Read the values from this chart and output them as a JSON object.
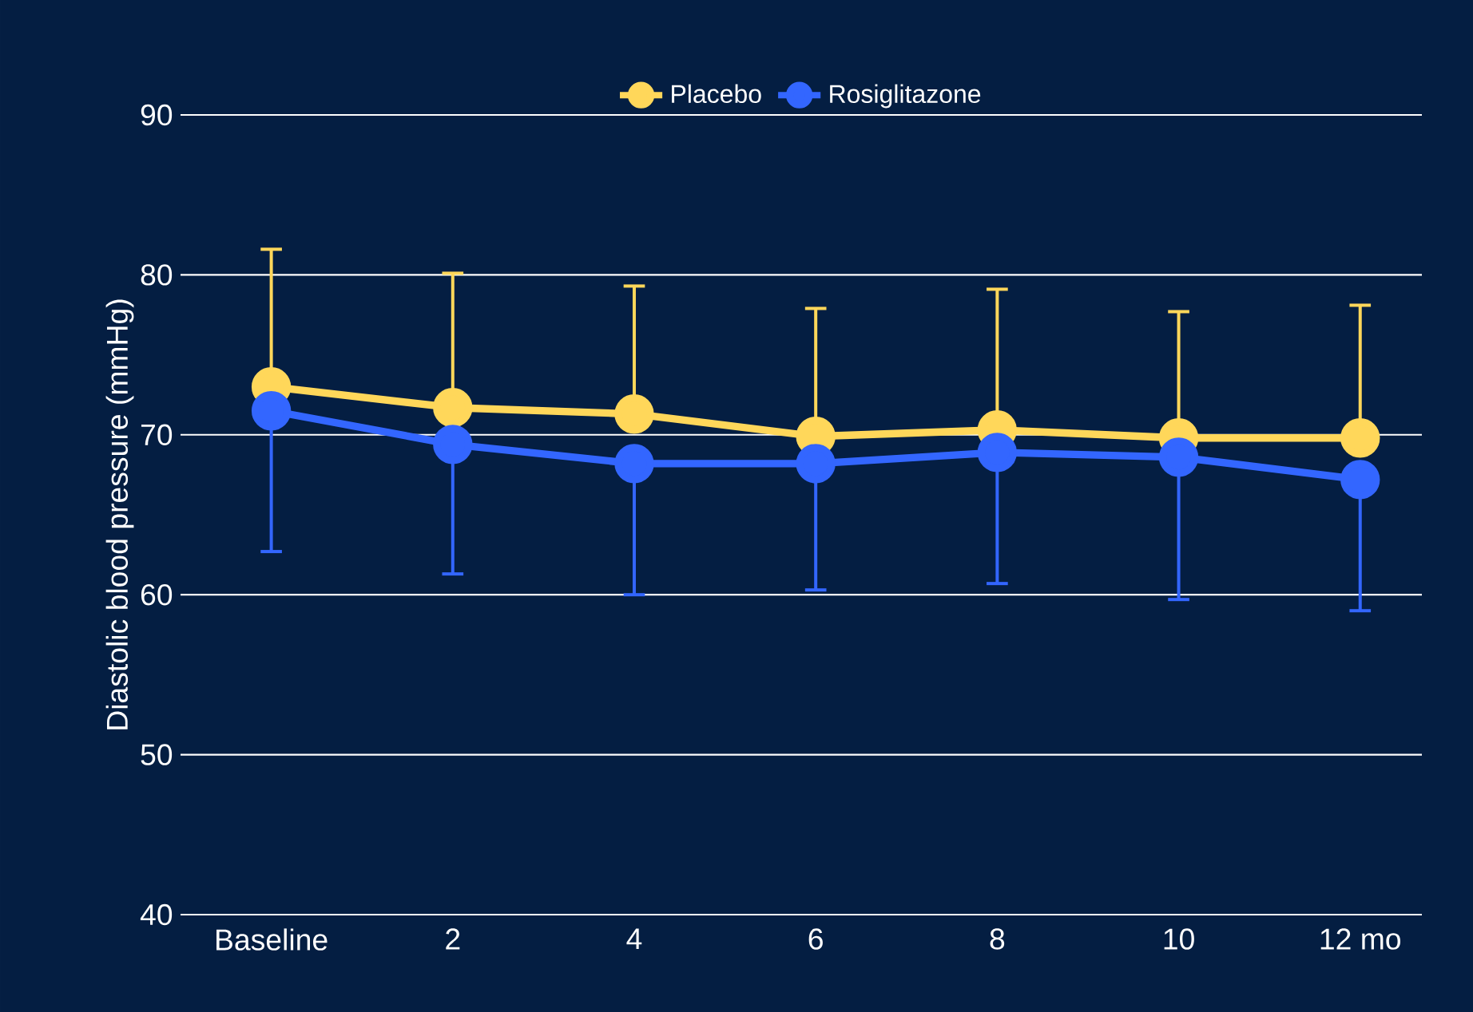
{
  "chart_data": {
    "type": "line",
    "ylabel": "Diastolic blood pressure (mmHg)",
    "categories": [
      "Baseline",
      "2",
      "4",
      "6",
      "8",
      "10",
      "12 mo"
    ],
    "series": [
      {
        "name": "Placebo",
        "color": "#ffd75a",
        "values": [
          73.0,
          71.7,
          71.3,
          69.9,
          70.3,
          69.8,
          69.8
        ],
        "errors": [
          [
            73.0,
            81.6
          ],
          [
            71.7,
            80.1
          ],
          [
            71.3,
            79.3
          ],
          [
            69.9,
            77.9
          ],
          [
            70.3,
            79.1
          ],
          [
            69.8,
            77.7
          ],
          [
            69.8,
            78.1
          ]
        ]
      },
      {
        "name": "Rosiglitazone",
        "color": "#3366ff",
        "values": [
          71.5,
          69.4,
          68.2,
          68.2,
          68.9,
          68.6,
          67.2
        ],
        "errors": [
          [
            62.7,
            71.5
          ],
          [
            61.3,
            69.4
          ],
          [
            60.0,
            68.2
          ],
          [
            60.3,
            68.2
          ],
          [
            60.7,
            68.9
          ],
          [
            59.7,
            68.6
          ],
          [
            59.0,
            67.2
          ]
        ]
      }
    ],
    "ylim": [
      40,
      90
    ],
    "yticks": [
      40,
      50,
      60,
      70,
      80,
      90
    ],
    "grid": "y",
    "legend": "top",
    "marker": "circle",
    "line_style": "solid"
  }
}
